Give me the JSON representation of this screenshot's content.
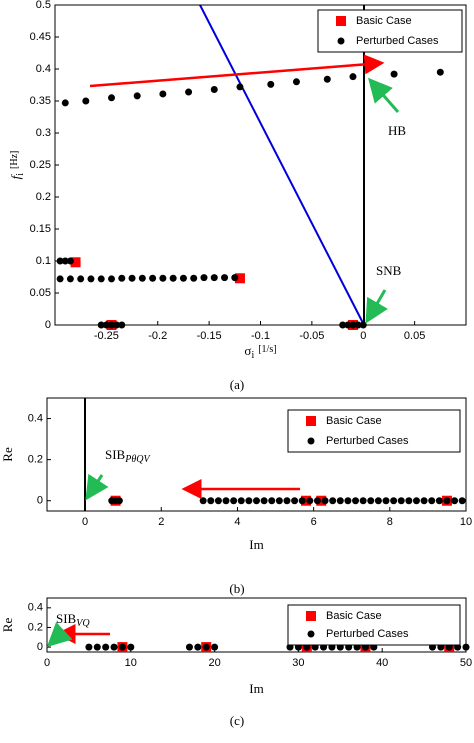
{
  "chart_data": [
    {
      "type": "scatter",
      "xlabel": "σ",
      "xlabel_sub": "i",
      "xlabel_unit": "[1/s]",
      "ylabel": "f",
      "ylabel_sub": "i",
      "ylabel_unit": "[Hz]",
      "caption": "(a)",
      "xlim": [
        -0.3,
        0.1
      ],
      "ylim": [
        0,
        0.5
      ],
      "xticks": [
        -0.25,
        -0.2,
        -0.15,
        -0.1,
        -0.05,
        0,
        0.05
      ],
      "yticks": [
        0,
        0.05,
        0.1,
        0.15,
        0.2,
        0.25,
        0.3,
        0.35,
        0.4,
        0.45,
        0.5
      ],
      "legend": "upper right",
      "series": [
        {
          "name": "Basic Case",
          "color": "#ff0000",
          "marker": "square",
          "x": [
            -0.28,
            -0.12,
            -0.245,
            -0.01
          ],
          "values": [
            0.098,
            0.073,
            0,
            0
          ]
        },
        {
          "name": "Perturbed Cases",
          "color": "#000000",
          "marker": "circle",
          "x": [
            -0.29,
            -0.27,
            -0.245,
            -0.22,
            -0.195,
            -0.17,
            -0.145,
            -0.12,
            -0.09,
            -0.065,
            -0.035,
            -0.01,
            0.03,
            0.075,
            -0.295,
            -0.285,
            -0.275,
            -0.265,
            -0.255,
            -0.245,
            -0.235,
            -0.225,
            -0.215,
            -0.205,
            -0.195,
            -0.185,
            -0.175,
            -0.165,
            -0.155,
            -0.145,
            -0.135,
            -0.125,
            -0.295,
            -0.29,
            -0.285,
            -0.255,
            -0.25,
            -0.245,
            -0.24,
            -0.235,
            -0.02,
            -0.015,
            -0.01,
            -0.005,
            0
          ],
          "values": [
            0.347,
            0.35,
            0.355,
            0.358,
            0.361,
            0.364,
            0.368,
            0.372,
            0.376,
            0.38,
            0.384,
            0.388,
            0.392,
            0.395,
            0.072,
            0.072,
            0.072,
            0.072,
            0.072,
            0.072,
            0.073,
            0.073,
            0.073,
            0.073,
            0.073,
            0.073,
            0.073,
            0.073,
            0.074,
            0.074,
            0.074,
            0.074,
            0.1,
            0.1,
            0.1,
            0,
            0,
            0,
            0,
            0,
            0,
            0,
            0,
            0,
            0
          ]
        }
      ],
      "annotations": [
        {
          "text": "HB"
        },
        {
          "text": "SNB"
        }
      ]
    },
    {
      "type": "scatter",
      "xlabel": "Im",
      "ylabel": "Re",
      "caption": "(b)",
      "xlim": [
        -1,
        10
      ],
      "ylim": [
        -0.05,
        0.5
      ],
      "xticks": [
        0,
        2,
        4,
        6,
        8,
        10
      ],
      "yticks": [
        0,
        0.2,
        0.4
      ],
      "legend": "upper right",
      "series": [
        {
          "name": "Basic Case",
          "color": "#ff0000",
          "marker": "square",
          "x": [
            0.8,
            5.8,
            6.2,
            9.5
          ],
          "values": [
            0,
            0,
            0,
            0
          ]
        },
        {
          "name": "Perturbed Cases",
          "color": "#000000",
          "marker": "circle",
          "x": [
            0.7,
            0.8,
            0.9,
            3.1,
            3.3,
            3.5,
            3.7,
            3.9,
            4.1,
            4.3,
            4.5,
            4.7,
            4.9,
            5.1,
            5.3,
            5.5,
            5.7,
            5.9,
            6.1,
            6.3,
            6.5,
            6.7,
            6.9,
            7.1,
            7.3,
            7.5,
            7.7,
            7.9,
            8.1,
            8.3,
            8.5,
            8.7,
            8.9,
            9.1,
            9.3,
            9.5,
            9.7,
            9.9
          ],
          "values": [
            0,
            0,
            0,
            0,
            0,
            0,
            0,
            0,
            0,
            0,
            0,
            0,
            0,
            0,
            0,
            0,
            0,
            0,
            0,
            0,
            0,
            0,
            0,
            0,
            0,
            0,
            0,
            0,
            0,
            0,
            0,
            0,
            0,
            0,
            0,
            0,
            0,
            0
          ]
        }
      ],
      "annotations": [
        {
          "text": "SIB",
          "sub": "PθQV"
        }
      ]
    },
    {
      "type": "scatter",
      "xlabel": "Im",
      "ylabel": "Re",
      "caption": "(c)",
      "xlim": [
        0,
        50
      ],
      "ylim": [
        -0.05,
        0.5
      ],
      "xticks": [
        0,
        10,
        20,
        30,
        40,
        50
      ],
      "yticks": [
        0,
        0.2,
        0.4
      ],
      "legend": "upper right",
      "series": [
        {
          "name": "Basic Case",
          "color": "#ff0000",
          "marker": "square",
          "x": [
            9,
            19,
            31,
            38,
            48
          ],
          "values": [
            0,
            0,
            0,
            0,
            0
          ]
        },
        {
          "name": "Perturbed Cases",
          "color": "#000000",
          "marker": "circle",
          "x": [
            5,
            6,
            7,
            8,
            9,
            10,
            17,
            18,
            19,
            20,
            29,
            30,
            31,
            32,
            33,
            34,
            35,
            36,
            37,
            38,
            39,
            46,
            47,
            48,
            49,
            50
          ],
          "values": [
            0,
            0,
            0,
            0,
            0,
            0,
            0,
            0,
            0,
            0,
            0,
            0,
            0,
            0,
            0,
            0,
            0,
            0,
            0,
            0,
            0,
            0,
            0,
            0,
            0,
            0
          ]
        }
      ],
      "annotations": [
        {
          "text": "SIB",
          "sub": "VQ"
        }
      ]
    }
  ]
}
